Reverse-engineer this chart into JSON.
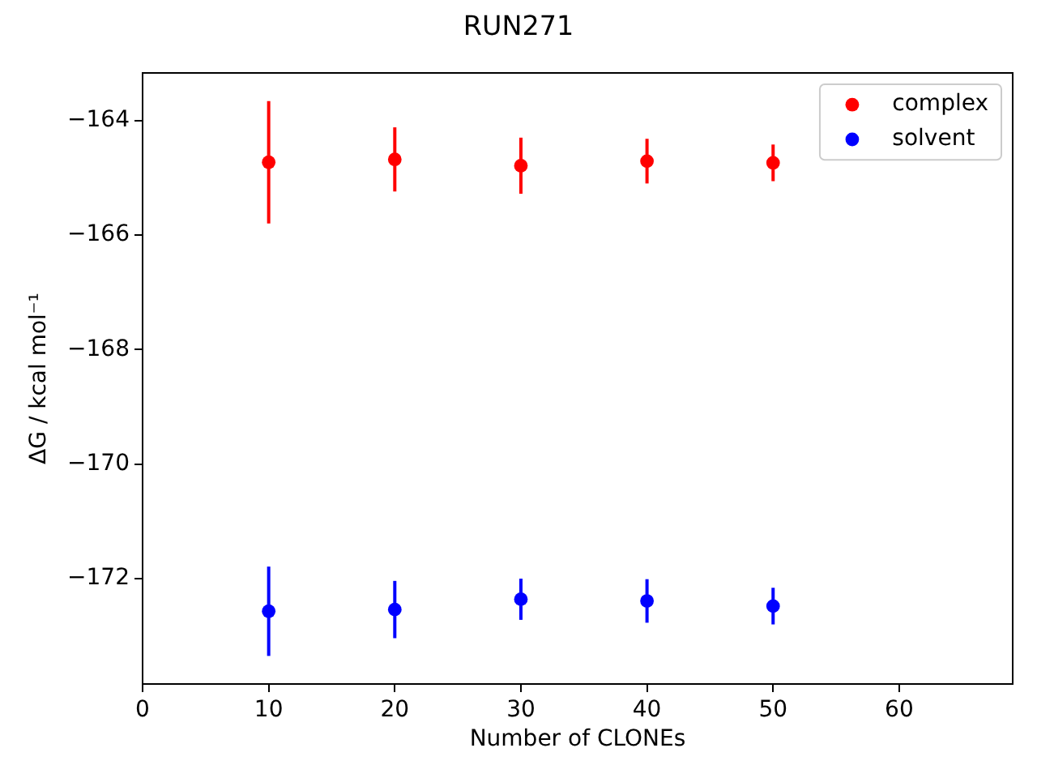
{
  "chart_data": {
    "type": "scatter",
    "title": "RUN271",
    "xlabel": "Number of CLONEs",
    "ylabel": "ΔG / kcal mol⁻¹",
    "x": [
      10,
      20,
      30,
      40,
      50
    ],
    "series": [
      {
        "name": "complex",
        "color": "#ff0000",
        "values": [
          -164.73,
          -164.68,
          -164.79,
          -164.71,
          -164.74
        ],
        "errors": [
          1.07,
          0.56,
          0.49,
          0.39,
          0.32
        ]
      },
      {
        "name": "solvent",
        "color": "#0000ff",
        "values": [
          -172.57,
          -172.54,
          -172.36,
          -172.39,
          -172.48
        ],
        "errors": [
          0.78,
          0.5,
          0.36,
          0.38,
          0.32
        ]
      }
    ],
    "xlim": [
      0,
      69
    ],
    "xticks": [
      0,
      10,
      20,
      30,
      40,
      50,
      60
    ],
    "ylim": [
      -173.84,
      -163.17
    ],
    "yticks": [
      -164,
      -166,
      -168,
      -170,
      -172
    ],
    "legend": "top right",
    "marker": "circle"
  }
}
